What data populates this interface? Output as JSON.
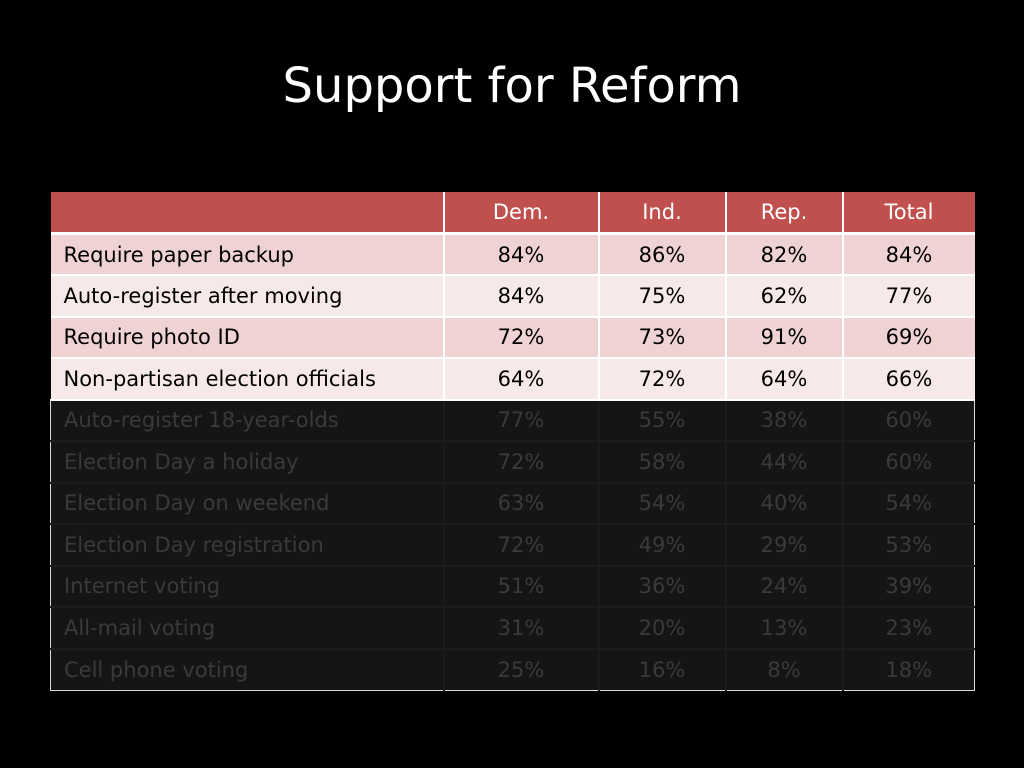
{
  "slide": {
    "title": "Support for Reform"
  },
  "table": {
    "columns": [
      "",
      "Dem.",
      "Ind.",
      "Rep.",
      "Total"
    ],
    "rows": [
      {
        "label": "Require paper backup",
        "values": [
          "84%",
          "86%",
          "82%",
          "84%"
        ],
        "dimmed": false
      },
      {
        "label": "Auto-register after moving",
        "values": [
          "84%",
          "75%",
          "62%",
          "77%"
        ],
        "dimmed": false
      },
      {
        "label": "Require photo ID",
        "values": [
          "72%",
          "73%",
          "91%",
          "69%"
        ],
        "dimmed": false
      },
      {
        "label": "Non-partisan election officials",
        "values": [
          "64%",
          "72%",
          "64%",
          "66%"
        ],
        "dimmed": false
      },
      {
        "label": "Auto-register 18-year-olds",
        "values": [
          "77%",
          "55%",
          "38%",
          "60%"
        ],
        "dimmed": true
      },
      {
        "label": "Election Day a holiday",
        "values": [
          "72%",
          "58%",
          "44%",
          "60%"
        ],
        "dimmed": true
      },
      {
        "label": "Election Day on weekend",
        "values": [
          "63%",
          "54%",
          "40%",
          "54%"
        ],
        "dimmed": true
      },
      {
        "label": "Election Day registration",
        "values": [
          "72%",
          "49%",
          "29%",
          "53%"
        ],
        "dimmed": true
      },
      {
        "label": "Internet voting",
        "values": [
          "51%",
          "36%",
          "24%",
          "39%"
        ],
        "dimmed": true
      },
      {
        "label": "All-mail voting",
        "values": [
          "31%",
          "20%",
          "13%",
          "23%"
        ],
        "dimmed": true
      },
      {
        "label": "Cell phone voting",
        "values": [
          "25%",
          "16%",
          "8%",
          "18%"
        ],
        "dimmed": true
      }
    ]
  },
  "colors": {
    "background": "#000000",
    "header": "#c0504d",
    "row_band_1": "#efd3d2",
    "row_band_2": "#f8e9e9",
    "dimmed_row": "#151515"
  }
}
